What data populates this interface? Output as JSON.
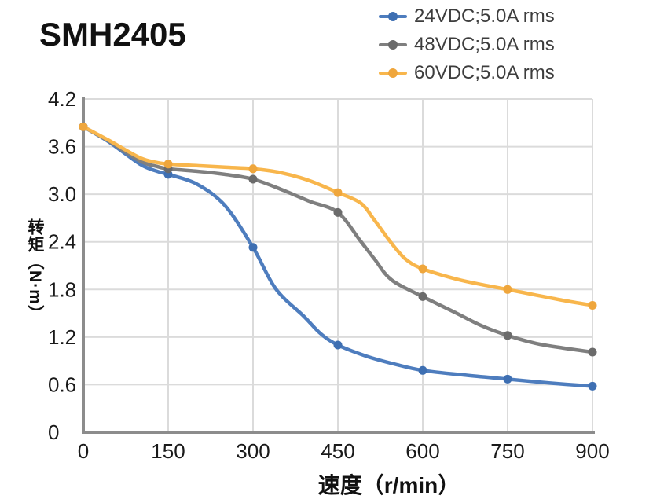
{
  "style": {
    "background": "#ffffff",
    "grid_color": "#dbdbdb",
    "axis_color": "#8c8c8c",
    "tick_label_color": "#1a1a1a",
    "title_color": "#111111",
    "legend_text_color": "#3d3d3d"
  },
  "chart_data": {
    "type": "line",
    "title": "SMH2405",
    "xlabel": "速度（r/min）",
    "ylabel": "转矩（N·m）",
    "xlim": [
      0,
      900
    ],
    "ylim": [
      0,
      4.2
    ],
    "grid": true,
    "legend_position": "top-right",
    "xticks": {
      "values": [
        0,
        150,
        300,
        450,
        600,
        750,
        900
      ],
      "labels": [
        "0",
        "150",
        "300",
        "450",
        "600",
        "750",
        "900"
      ]
    },
    "yticks": {
      "values": [
        0,
        0.6,
        1.2,
        1.8,
        2.4,
        3.0,
        3.6,
        4.2
      ],
      "labels": [
        "0",
        "0.6",
        "1.2",
        "1.8",
        "2.4",
        "3.0",
        "3.6",
        "4.2"
      ]
    },
    "series": [
      {
        "id": "24vdc",
        "name": "24VDC;5.0A rms",
        "line_color": "#4e7dbe",
        "marker_color": "#3e6fb2",
        "points": [
          [
            0,
            3.85
          ],
          [
            45,
            3.66
          ],
          [
            100,
            3.38
          ],
          [
            130,
            3.29
          ],
          [
            150,
            3.25
          ],
          [
            200,
            3.13
          ],
          [
            250,
            2.86
          ],
          [
            300,
            2.33
          ],
          [
            340,
            1.81
          ],
          [
            390,
            1.46
          ],
          [
            420,
            1.24
          ],
          [
            450,
            1.1
          ],
          [
            500,
            0.96
          ],
          [
            550,
            0.86
          ],
          [
            600,
            0.78
          ],
          [
            675,
            0.72
          ],
          [
            750,
            0.67
          ],
          [
            825,
            0.62
          ],
          [
            900,
            0.58
          ]
        ],
        "markers": [
          [
            0,
            3.85
          ],
          [
            150,
            3.25
          ],
          [
            300,
            2.33
          ],
          [
            450,
            1.1
          ],
          [
            600,
            0.78
          ],
          [
            750,
            0.67
          ],
          [
            900,
            0.58
          ]
        ]
      },
      {
        "id": "48vdc",
        "name": "48VDC;5.0A rms",
        "line_color": "#7f7f7f",
        "marker_color": "#6b6b6b",
        "points": [
          [
            0,
            3.85
          ],
          [
            45,
            3.67
          ],
          [
            100,
            3.42
          ],
          [
            130,
            3.35
          ],
          [
            150,
            3.32
          ],
          [
            200,
            3.29
          ],
          [
            250,
            3.25
          ],
          [
            300,
            3.19
          ],
          [
            350,
            3.06
          ],
          [
            400,
            2.91
          ],
          [
            450,
            2.77
          ],
          [
            490,
            2.41
          ],
          [
            515,
            2.18
          ],
          [
            545,
            1.92
          ],
          [
            600,
            1.71
          ],
          [
            660,
            1.5
          ],
          [
            705,
            1.34
          ],
          [
            750,
            1.22
          ],
          [
            800,
            1.12
          ],
          [
            850,
            1.06
          ],
          [
            900,
            1.01
          ]
        ],
        "markers": [
          [
            0,
            3.85
          ],
          [
            150,
            3.32
          ],
          [
            300,
            3.19
          ],
          [
            450,
            2.77
          ],
          [
            600,
            1.71
          ],
          [
            750,
            1.22
          ],
          [
            900,
            1.01
          ]
        ]
      },
      {
        "id": "60vdc",
        "name": "60VDC;5.0A rms",
        "line_color": "#f8b64c",
        "marker_color": "#efa63c",
        "points": [
          [
            0,
            3.85
          ],
          [
            45,
            3.68
          ],
          [
            100,
            3.46
          ],
          [
            130,
            3.4
          ],
          [
            150,
            3.38
          ],
          [
            200,
            3.36
          ],
          [
            250,
            3.34
          ],
          [
            300,
            3.32
          ],
          [
            350,
            3.27
          ],
          [
            400,
            3.17
          ],
          [
            450,
            3.02
          ],
          [
            490,
            2.89
          ],
          [
            515,
            2.67
          ],
          [
            545,
            2.38
          ],
          [
            570,
            2.18
          ],
          [
            600,
            2.06
          ],
          [
            660,
            1.93
          ],
          [
            705,
            1.86
          ],
          [
            750,
            1.8
          ],
          [
            800,
            1.73
          ],
          [
            850,
            1.66
          ],
          [
            900,
            1.6
          ]
        ],
        "markers": [
          [
            0,
            3.85
          ],
          [
            150,
            3.38
          ],
          [
            300,
            3.32
          ],
          [
            450,
            3.02
          ],
          [
            600,
            2.06
          ],
          [
            750,
            1.8
          ],
          [
            900,
            1.6
          ]
        ]
      }
    ]
  }
}
